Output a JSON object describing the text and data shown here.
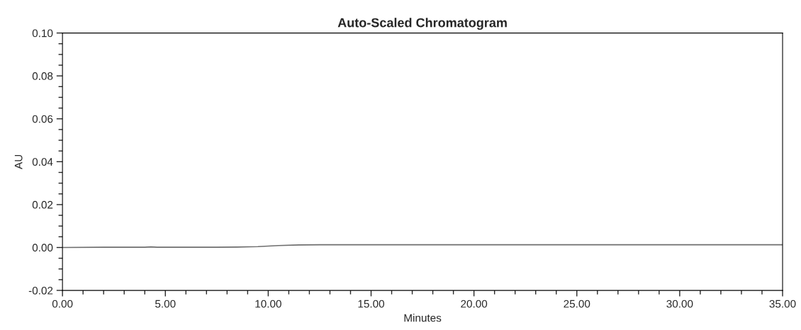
{
  "chart_data": {
    "type": "line",
    "title": "Auto-Scaled Chromatogram",
    "xlabel": "Minutes",
    "ylabel": "AU",
    "x": [
      0,
      2,
      4,
      4.3,
      4.6,
      6,
      7.5,
      8.5,
      9.5,
      10.5,
      11.5,
      12.5,
      15,
      20,
      35
    ],
    "series": [
      {
        "color": "#6e6e6e",
        "values": [
          0,
          0.0001,
          0.0001,
          0.0003,
          0.0001,
          0.0001,
          0.0001,
          0.0002,
          0.0004,
          0.0009,
          0.0012,
          0.0013,
          0.0013,
          0.0013,
          0.0013
        ]
      }
    ],
    "xlim": [
      0,
      35
    ],
    "ylim": [
      -0.02,
      0.1
    ],
    "xticks": [
      {
        "value": 0,
        "label": "0.00"
      },
      {
        "value": 5,
        "label": "5.00"
      },
      {
        "value": 10,
        "label": "10.00"
      },
      {
        "value": 15,
        "label": "15.00"
      },
      {
        "value": 20,
        "label": "20.00"
      },
      {
        "value": 25,
        "label": "25.00"
      },
      {
        "value": 30,
        "label": "30.00"
      },
      {
        "value": 35,
        "label": "35.00"
      }
    ],
    "yticks": [
      {
        "value": -0.02,
        "label": "-0.02"
      },
      {
        "value": 0,
        "label": "0.00"
      },
      {
        "value": 0.02,
        "label": "0.02"
      },
      {
        "value": 0.04,
        "label": "0.04"
      },
      {
        "value": 0.06,
        "label": "0.06"
      },
      {
        "value": 0.08,
        "label": "0.08"
      },
      {
        "value": 0.1,
        "label": "0.10"
      }
    ],
    "grid": false,
    "legend": false,
    "marker": "none",
    "line_style": "solid"
  }
}
